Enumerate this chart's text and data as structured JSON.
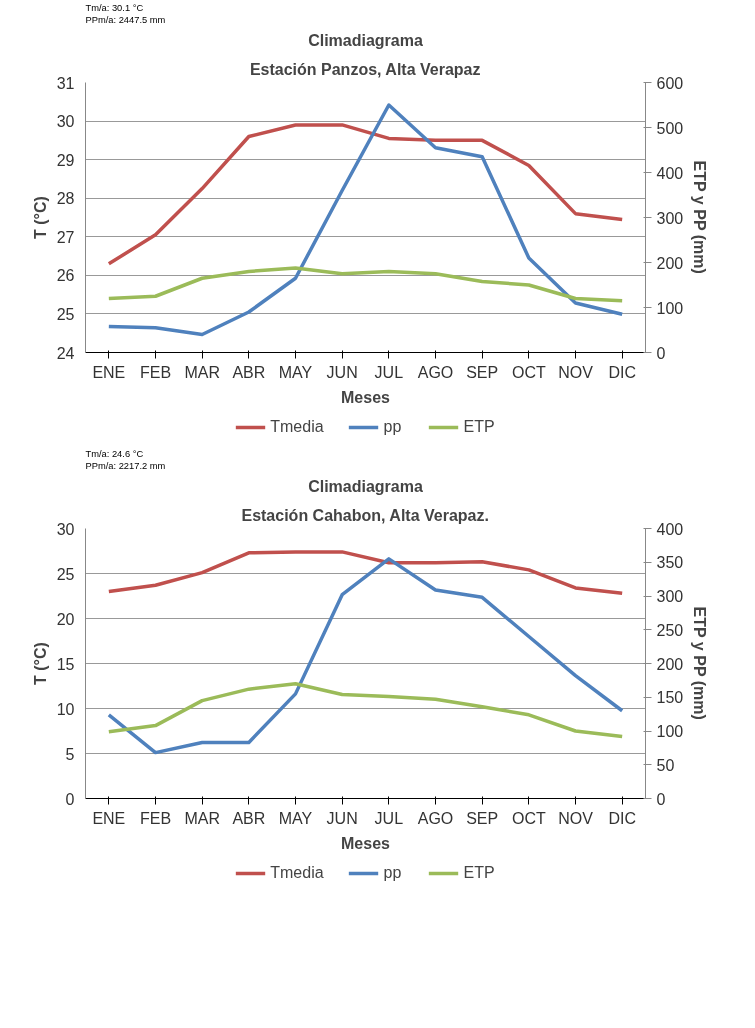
{
  "chart_data": [
    {
      "type": "line",
      "title": "Climadiagrama",
      "subtitle": "Estación Panzos, Alta Verapaz",
      "xlabel": "Meses",
      "ylabel": "T (°C)",
      "y2label": "ETP y PP (mm)",
      "annotations": [
        "Tm/a: 30.1 °C",
        "PPm/a: 2447.5 mm"
      ],
      "categories": [
        "ENE",
        "FEB",
        "MAR",
        "ABR",
        "MAY",
        "JUN",
        "JUL",
        "AGO",
        "SEP",
        "OCT",
        "NOV",
        "DIC"
      ],
      "series": [
        {
          "name": "Tmedia",
          "color": "#c0504d",
          "values": [
            26.3,
            27.05,
            28.25,
            29.6,
            29.9,
            29.9,
            29.55,
            29.5,
            29.5,
            28.85,
            27.6,
            27.45
          ]
        },
        {
          "name": "pp",
          "color": "#4f81bd",
          "axis": "y2",
          "values": [
            58,
            55,
            40,
            90,
            165,
            360,
            550,
            455,
            435,
            210,
            110,
            85
          ]
        },
        {
          "name": "ETP",
          "color": "#9bbb59",
          "axis": "y2",
          "values": [
            120,
            125,
            165,
            180,
            188,
            175,
            180,
            175,
            158,
            150,
            120,
            115
          ]
        }
      ],
      "ylim": [
        24,
        31
      ],
      "yticks": [
        24,
        25,
        26,
        27,
        28,
        29,
        30,
        31
      ],
      "y2lim": [
        0,
        600
      ],
      "y2ticks": [
        0,
        100,
        200,
        300,
        400,
        500,
        600
      ],
      "grid": "y",
      "legend": "bottom",
      "line_style": "solid"
    },
    {
      "type": "line",
      "title": "Climadiagrama",
      "subtitle": "Estación Cahabon, Alta Verapaz.",
      "xlabel": "Meses",
      "ylabel": "T (°C)",
      "y2label": "ETP y PP (mm)",
      "annotations": [
        "Tm/a: 24.6 °C",
        "PPm/a: 2217.2 mm"
      ],
      "categories": [
        "ENE",
        "FEB",
        "MAR",
        "ABR",
        "MAY",
        "JUN",
        "JUL",
        "AGO",
        "SEP",
        "OCT",
        "NOV",
        "DIC"
      ],
      "series": [
        {
          "name": "Tmedia",
          "color": "#c0504d",
          "values": [
            23,
            23.7,
            25.1,
            27.3,
            27.4,
            27.4,
            26.2,
            26.2,
            26.3,
            25.4,
            23.4,
            22.8
          ]
        },
        {
          "name": "pp",
          "color": "#4f81bd",
          "axis": "y2",
          "values": [
            124,
            68,
            83,
            83,
            155,
            302,
            355,
            309,
            298,
            240,
            182,
            130
          ]
        },
        {
          "name": "ETP",
          "color": "#9bbb59",
          "axis": "y2",
          "values": [
            99,
            108,
            145,
            162,
            170,
            154,
            151,
            147,
            136,
            124,
            100,
            92
          ]
        }
      ],
      "ylim": [
        0,
        30
      ],
      "yticks": [
        0,
        5,
        10,
        15,
        20,
        25,
        30
      ],
      "y2lim": [
        0,
        400
      ],
      "y2ticks": [
        0,
        50,
        100,
        150,
        200,
        250,
        300,
        350,
        400
      ],
      "grid": "y",
      "legend": "bottom",
      "line_style": "solid"
    }
  ]
}
